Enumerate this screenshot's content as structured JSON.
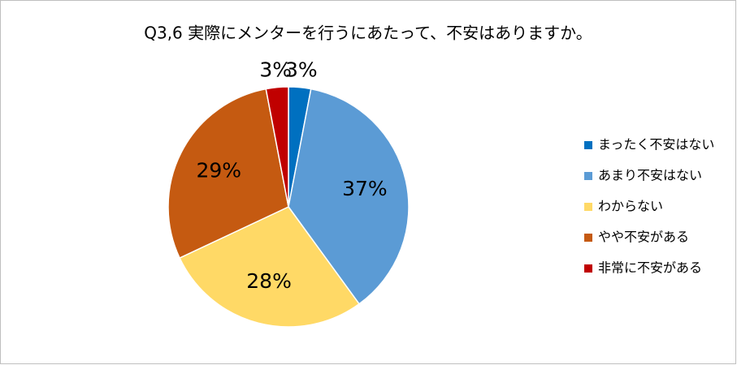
{
  "chart_data": {
    "type": "pie",
    "title": "Q3,6 実際にメンターを行うにあたって、不安はありますか。",
    "categories": [
      "まったく不安はない",
      "あまり不安はない",
      "わからない",
      "やや不安がある",
      "非常に不安がある"
    ],
    "values": [
      3,
      37,
      28,
      29,
      3
    ],
    "value_labels": [
      "3%",
      "37%",
      "28%",
      "29%",
      "3%"
    ],
    "colors": [
      "#0070c0",
      "#5b9bd5",
      "#ffd966",
      "#c55a11",
      "#c00000"
    ],
    "legend": "right"
  }
}
